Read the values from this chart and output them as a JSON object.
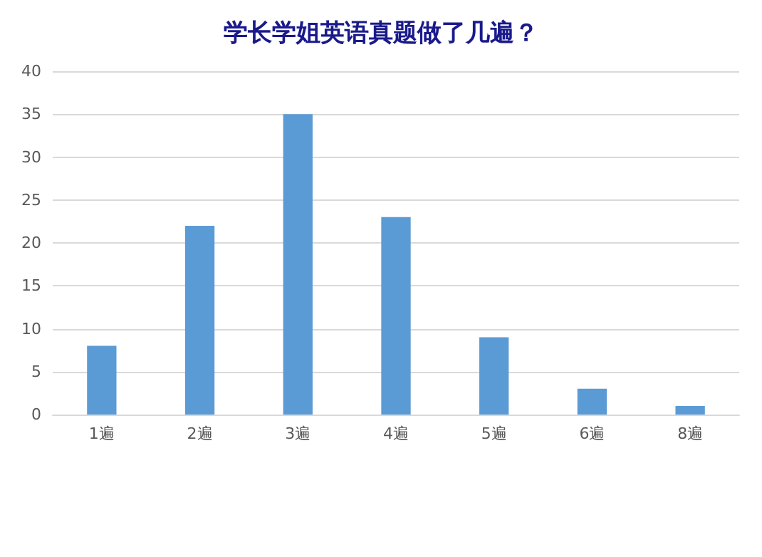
{
  "chart_data": {
    "type": "bar",
    "title": "学长学姐英语真题做了几遍？",
    "categories": [
      "1遍",
      "2遍",
      "3遍",
      "4遍",
      "5遍",
      "6遍",
      "8遍"
    ],
    "values": [
      8,
      22,
      35,
      23,
      9,
      3,
      1
    ],
    "color": "#5b9bd5",
    "ylim": [
      0,
      40
    ],
    "yticks": [
      0,
      5,
      10,
      15,
      20,
      25,
      30,
      35,
      40
    ],
    "grid": "y"
  }
}
